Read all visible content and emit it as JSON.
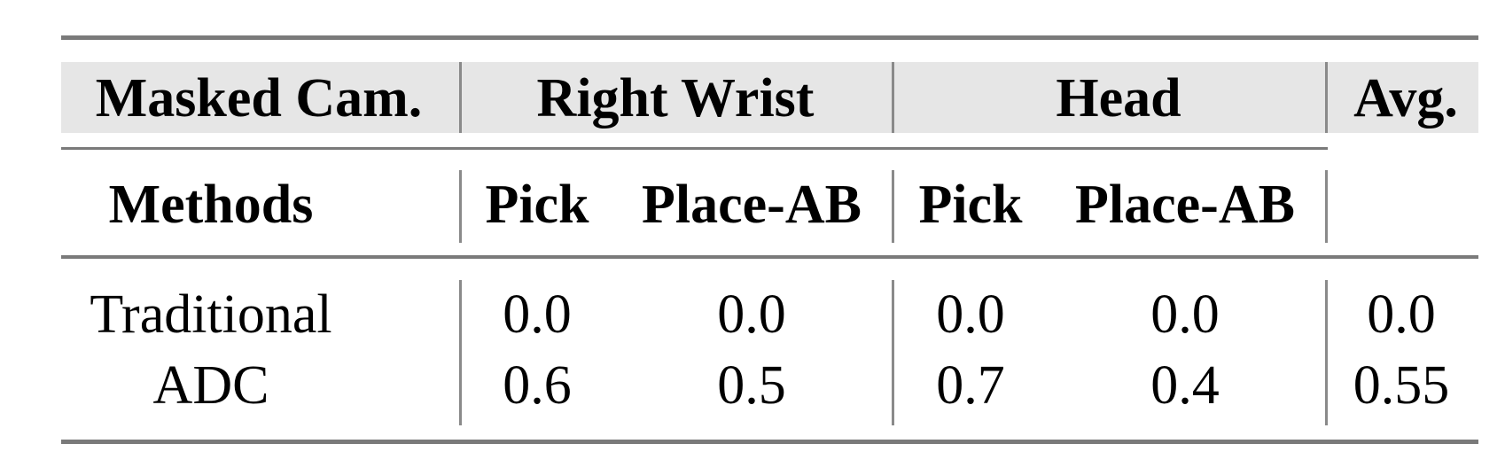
{
  "header": {
    "masked_cam_label": "Masked Cam.",
    "groups": [
      "Right Wrist",
      "Head"
    ],
    "avg_label": "Avg.",
    "methods_label": "Methods",
    "subcolumns": [
      "Pick",
      "Place-AB",
      "Pick",
      "Place-AB"
    ]
  },
  "rows": [
    {
      "method": "Traditional",
      "values": [
        "0.0",
        "0.0",
        "0.0",
        "0.0",
        "0.0"
      ]
    },
    {
      "method": "ADC",
      "values": [
        "0.6",
        "0.5",
        "0.7",
        "0.4",
        "0.55"
      ]
    }
  ]
}
